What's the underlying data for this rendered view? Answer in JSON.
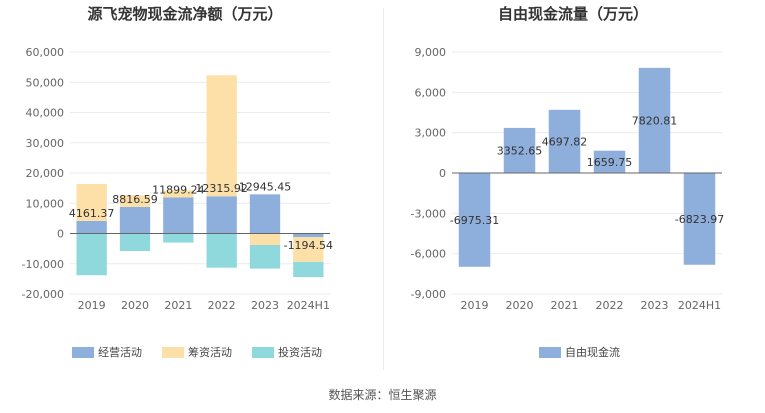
{
  "source_note": "数据来源：恒生聚源",
  "chart_data": [
    {
      "type": "bar",
      "stacked": true,
      "title": "源飞宠物现金流净额（万元）",
      "categories": [
        "2019",
        "2020",
        "2021",
        "2022",
        "2023",
        "2024H1"
      ],
      "ylim": [
        -20000,
        60000
      ],
      "yticks": [
        -20000,
        -10000,
        0,
        10000,
        20000,
        30000,
        40000,
        50000,
        60000
      ],
      "ytick_labels": [
        "-20,000",
        "-10,000",
        "0",
        "10,000",
        "20,000",
        "30,000",
        "40,000",
        "50,000",
        "60,000"
      ],
      "series": [
        {
          "name": "经营活动",
          "color": "#8eaedc",
          "values": [
            4161.37,
            8816.59,
            11899.24,
            12315.92,
            12945.45,
            -1194.54
          ]
        },
        {
          "name": "筹资活动",
          "color": "#fde0a8",
          "values": [
            12200,
            3800,
            2400,
            40000,
            -3800,
            -8200
          ]
        },
        {
          "name": "投资活动",
          "color": "#8fd8dc",
          "values": [
            -13800,
            -5800,
            -3000,
            -11300,
            -7800,
            -5000
          ]
        }
      ],
      "data_labels": [
        "4161.37",
        "8816.59",
        "11899.24",
        "12315.92",
        "12945.45",
        "-1194.54"
      ],
      "legend_position": "bottom"
    },
    {
      "type": "bar",
      "title": "自由现金流量（万元）",
      "categories": [
        "2019",
        "2020",
        "2021",
        "2022",
        "2023",
        "2024H1"
      ],
      "ylim": [
        -9000,
        9000
      ],
      "yticks": [
        -9000,
        -6000,
        -3000,
        0,
        3000,
        6000,
        9000
      ],
      "ytick_labels": [
        "-9,000",
        "-6,000",
        "-3,000",
        "0",
        "3,000",
        "6,000",
        "9,000"
      ],
      "series": [
        {
          "name": "自由现金流",
          "color": "#8eaedc",
          "values": [
            -6975.31,
            3352.65,
            4697.82,
            1659.75,
            7820.81,
            -6823.97
          ]
        }
      ],
      "data_labels": [
        "-6975.31",
        "3352.65",
        "4697.82",
        "1659.75",
        "7820.81",
        "-6823.97"
      ],
      "legend_position": "bottom"
    }
  ]
}
